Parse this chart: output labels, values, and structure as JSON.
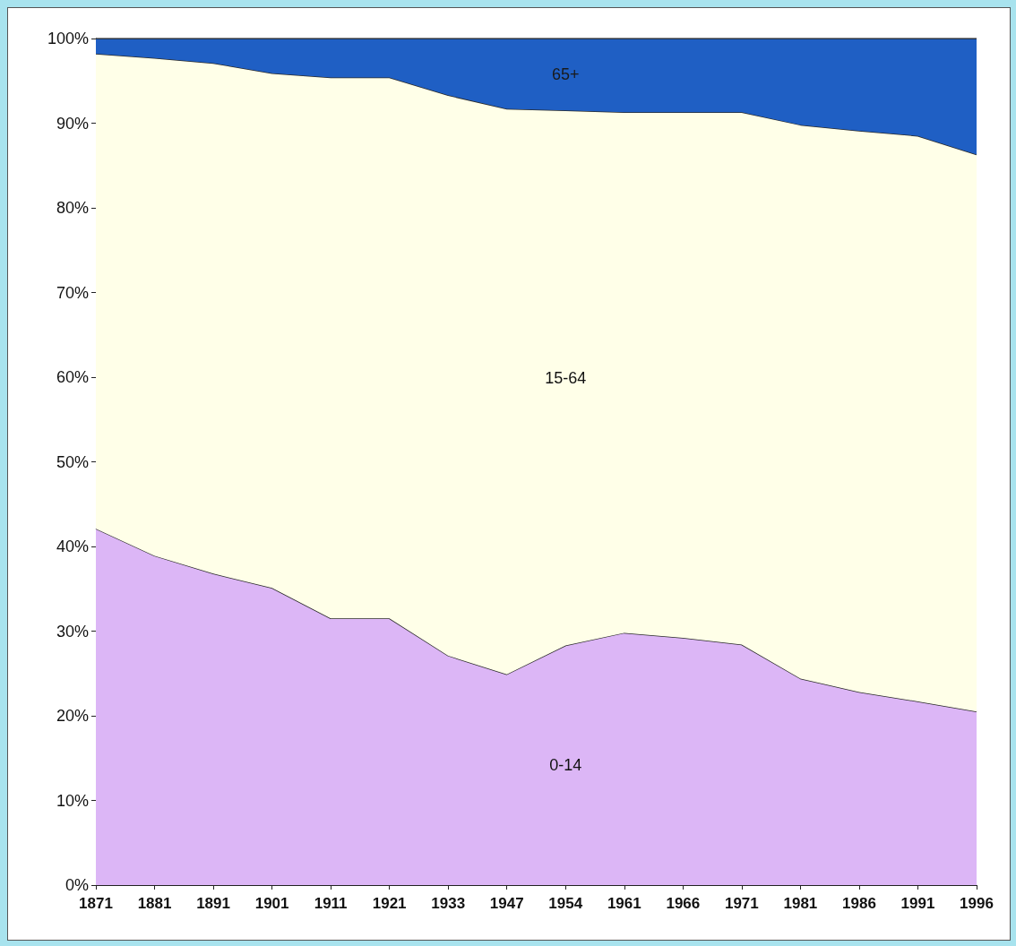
{
  "chart_data": {
    "type": "area",
    "stacked": true,
    "legend": false,
    "grid": false,
    "marker": "none",
    "categories": [
      "1871",
      "1881",
      "1891",
      "1901",
      "1911",
      "1921",
      "1933",
      "1947",
      "1954",
      "1961",
      "1966",
      "1971",
      "1981",
      "1986",
      "1991",
      "1996"
    ],
    "series": [
      {
        "name": "0-14",
        "color": "#dcb6f6",
        "values": [
          42.1,
          38.9,
          36.8,
          35.1,
          31.5,
          31.5,
          27.1,
          24.9,
          28.3,
          29.8,
          29.2,
          28.4,
          24.4,
          22.8,
          21.7,
          20.5
        ]
      },
      {
        "name": "15-64",
        "color": "#ffffe8",
        "values": [
          56.1,
          58.8,
          60.3,
          60.8,
          63.9,
          63.9,
          66.2,
          66.8,
          63.2,
          61.5,
          62.1,
          62.9,
          65.4,
          66.3,
          66.8,
          65.8
        ]
      },
      {
        "name": "65+",
        "color": "#1f5fc4",
        "values": [
          1.8,
          2.3,
          2.9,
          4.1,
          4.6,
          4.6,
          6.7,
          8.3,
          8.5,
          8.7,
          8.7,
          8.7,
          10.2,
          10.9,
          11.5,
          13.7
        ]
      }
    ],
    "ylim": [
      0,
      100
    ],
    "yticks": [
      {
        "value": 0,
        "label": "0%"
      },
      {
        "value": 10,
        "label": "10%"
      },
      {
        "value": 20,
        "label": "20%"
      },
      {
        "value": 30,
        "label": "30%"
      },
      {
        "value": 40,
        "label": "40%"
      },
      {
        "value": 50,
        "label": "50%"
      },
      {
        "value": 60,
        "label": "60%"
      },
      {
        "value": 70,
        "label": "70%"
      },
      {
        "value": 80,
        "label": "80%"
      },
      {
        "value": 90,
        "label": "90%"
      },
      {
        "value": 100,
        "label": "100%"
      }
    ]
  }
}
